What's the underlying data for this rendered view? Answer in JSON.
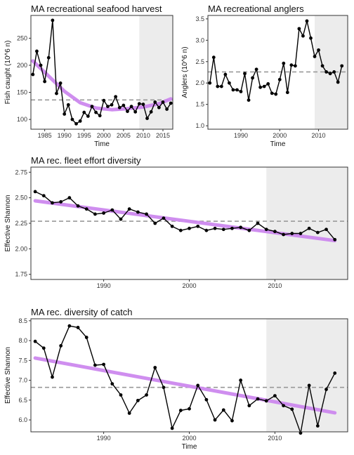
{
  "colors": {
    "line": "#000000",
    "trend": "#cc88ee",
    "mean": "#999999",
    "shade": "#ececec",
    "border": "#333333"
  },
  "chart_data": [
    {
      "type": "line",
      "title": "MA recreational seafood harvest",
      "xlabel": "Time",
      "ylabel": "Fish caught (10^6 n)",
      "xlim": [
        1981.5,
        2017.5
      ],
      "ylim": [
        82,
        292
      ],
      "xticks": [
        1985,
        1990,
        1995,
        2000,
        2005,
        2010,
        2015
      ],
      "yticks": [
        100,
        150,
        200,
        250
      ],
      "shade_from": 2009,
      "mean": 136,
      "x": [
        1982,
        1983,
        1984,
        1985,
        1986,
        1987,
        1988,
        1989,
        1990,
        1991,
        1992,
        1993,
        1994,
        1995,
        1996,
        1997,
        1998,
        1999,
        2000,
        2001,
        2002,
        2003,
        2004,
        2005,
        2006,
        2007,
        2008,
        2009,
        2010,
        2011,
        2012,
        2013,
        2014,
        2015,
        2016,
        2017
      ],
      "y": [
        183,
        226,
        200,
        170,
        214,
        283,
        148,
        167,
        110,
        127,
        100,
        92,
        97,
        113,
        106,
        124,
        113,
        107,
        135,
        124,
        127,
        142,
        122,
        126,
        115,
        124,
        114,
        129,
        128,
        102,
        114,
        132,
        122,
        132,
        119,
        130
      ],
      "trend": {
        "x": [
          1982,
          1986,
          1990,
          1994,
          1998,
          2002,
          2006,
          2010,
          2014,
          2017
        ],
        "y": [
          208,
          180,
          152,
          131,
          121,
          118,
          120,
          123,
          129,
          138
        ]
      }
    },
    {
      "type": "line",
      "title": "MA recreational anglers",
      "xlabel": "Time",
      "ylabel": "Anglers (10^6 n)",
      "xlim": [
        1981.5,
        2017.5
      ],
      "ylim": [
        0.92,
        3.58
      ],
      "xticks": [
        1990,
        2000,
        2010
      ],
      "yticks": [
        1.0,
        1.5,
        2.0,
        2.5,
        3.0,
        3.5
      ],
      "shade_from": 2009,
      "mean": 2.26,
      "x": [
        1982,
        1983,
        1984,
        1985,
        1986,
        1987,
        1988,
        1989,
        1990,
        1991,
        1992,
        1993,
        1994,
        1995,
        1996,
        1997,
        1998,
        1999,
        2000,
        2001,
        2002,
        2003,
        2004,
        2005,
        2006,
        2007,
        2008,
        2009,
        2010,
        2011,
        2012,
        2013,
        2014,
        2015,
        2016
      ],
      "y": [
        2.0,
        2.6,
        1.92,
        1.92,
        2.2,
        2.0,
        1.84,
        1.84,
        1.8,
        2.22,
        1.6,
        2.12,
        2.32,
        1.9,
        1.92,
        1.98,
        1.76,
        1.74,
        2.08,
        2.46,
        1.78,
        2.42,
        2.4,
        3.27,
        3.1,
        3.45,
        3.05,
        2.62,
        2.77,
        2.4,
        2.26,
        2.22,
        2.26,
        2.02,
        2.4
      ],
      "trend": null
    },
    {
      "type": "line",
      "title": "MA rec. fleet effort diversity",
      "xlabel": "",
      "ylabel": "Effective Shannon",
      "xlim": [
        1981.5,
        2018.5
      ],
      "ylim": [
        1.7,
        2.8
      ],
      "xticks": [
        1990,
        2000,
        2010
      ],
      "yticks": [
        1.75,
        2.0,
        2.25,
        2.5,
        2.75
      ],
      "shade_from": 2009,
      "mean": 2.27,
      "x": [
        1982,
        1983,
        1984,
        1985,
        1986,
        1987,
        1988,
        1989,
        1990,
        1991,
        1992,
        1993,
        1994,
        1995,
        1996,
        1997,
        1998,
        1999,
        2000,
        2001,
        2002,
        2003,
        2004,
        2005,
        2006,
        2007,
        2008,
        2009,
        2010,
        2011,
        2012,
        2013,
        2014,
        2015,
        2016,
        2017
      ],
      "y": [
        2.56,
        2.52,
        2.45,
        2.46,
        2.5,
        2.42,
        2.39,
        2.34,
        2.35,
        2.38,
        2.29,
        2.39,
        2.36,
        2.34,
        2.25,
        2.3,
        2.22,
        2.18,
        2.2,
        2.22,
        2.18,
        2.2,
        2.19,
        2.2,
        2.21,
        2.18,
        2.25,
        2.19,
        2.17,
        2.14,
        2.15,
        2.15,
        2.2,
        2.16,
        2.19,
        2.09
      ],
      "trend": {
        "x": [
          1982,
          2017
        ],
        "y": [
          2.47,
          2.08
        ]
      }
    },
    {
      "type": "line",
      "title": "MA rec. diversity of catch",
      "xlabel": "Time",
      "ylabel": "Effective Shannon",
      "xlim": [
        1981.5,
        2018.5
      ],
      "ylim": [
        5.7,
        8.55
      ],
      "xticks": [
        1990,
        2000,
        2010
      ],
      "yticks": [
        6.0,
        6.5,
        7.0,
        7.5,
        8.0,
        8.5
      ],
      "shade_from": 2009,
      "mean": 6.82,
      "x": [
        1982,
        1983,
        1984,
        1985,
        1986,
        1987,
        1988,
        1989,
        1990,
        1991,
        1992,
        1993,
        1994,
        1995,
        1996,
        1997,
        1998,
        1999,
        2000,
        2001,
        2002,
        2003,
        2004,
        2005,
        2006,
        2007,
        2008,
        2009,
        2010,
        2011,
        2012,
        2013,
        2014,
        2015,
        2016,
        2017
      ],
      "y": [
        7.98,
        7.81,
        7.08,
        7.87,
        8.37,
        8.33,
        8.08,
        7.38,
        7.4,
        6.91,
        6.63,
        6.17,
        6.49,
        6.63,
        7.32,
        6.82,
        5.79,
        6.24,
        6.28,
        6.87,
        6.51,
        6.0,
        6.25,
        5.98,
        7.0,
        6.36,
        6.53,
        6.48,
        6.61,
        6.36,
        6.27,
        5.67,
        6.87,
        5.85,
        6.77,
        7.18
      ],
      "trend": {
        "x": [
          1982,
          2017
        ],
        "y": [
          7.56,
          6.18
        ]
      }
    }
  ]
}
